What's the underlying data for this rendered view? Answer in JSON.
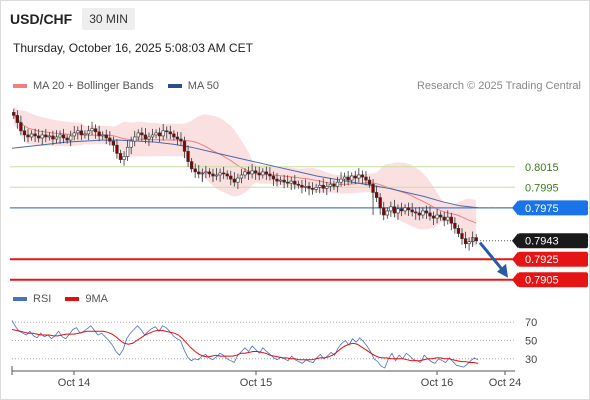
{
  "header": {
    "symbol": "USD/CHF",
    "timeframe": "30 MIN"
  },
  "datetime": "Thursday, October 16, 2025 5:08:03 AM CET",
  "legend_main": [
    {
      "label": "MA 20 + Bollinger Bands",
      "color": "#f08080"
    },
    {
      "label": "MA 50",
      "color": "#2c4f8c"
    }
  ],
  "credit": "Research © 2025 Trading Central",
  "legend_rsi": [
    {
      "label": "RSI",
      "color": "#4472c4"
    },
    {
      "label": "9MA",
      "color": "#e01010"
    }
  ],
  "colors": {
    "up_candle": "#ffffff",
    "down_candle": "#8b0000",
    "support": "#e51515",
    "resistance_green": "#9acd32",
    "ma50_line": "#4a7fd0",
    "bollinger_fill": "#fadadd",
    "current_price_bg": "#1a1a1a",
    "ma50_tag_bg": "#1a73e8",
    "forecast_arrow": "#2a5aa8"
  },
  "chart_data": [
    {
      "type": "candlestick",
      "x_ticks": [
        "Oct 14",
        "Oct 15",
        "Oct 16",
        "Oct 24"
      ],
      "ylim": [
        0.7895,
        0.808
      ],
      "levels": [
        {
          "label": "0.8015",
          "value": 0.8015,
          "kind": "resistance"
        },
        {
          "label": "0.7995",
          "value": 0.7995,
          "kind": "resistance"
        },
        {
          "label": "0.7975",
          "value": 0.7975,
          "kind": "ma50"
        },
        {
          "label": "0.7943",
          "value": 0.7943,
          "kind": "current"
        },
        {
          "label": "0.7925",
          "value": 0.7925,
          "kind": "support"
        },
        {
          "label": "0.7905",
          "value": 0.7905,
          "kind": "support"
        }
      ],
      "close_prices": [
        0.8065,
        0.8058,
        0.805,
        0.8046,
        0.8044,
        0.8047,
        0.8045,
        0.8043,
        0.8046,
        0.8044,
        0.8045,
        0.8042,
        0.8044,
        0.8046,
        0.8043,
        0.8041,
        0.8045,
        0.8048,
        0.805,
        0.8046,
        0.8047,
        0.805,
        0.8052,
        0.8049,
        0.8045,
        0.8046,
        0.8043,
        0.804,
        0.8036,
        0.8028,
        0.8022,
        0.8025,
        0.8034,
        0.804,
        0.8044,
        0.8048,
        0.8046,
        0.8042,
        0.8044,
        0.8046,
        0.8048,
        0.8045,
        0.805,
        0.8049,
        0.8047,
        0.8044,
        0.8042,
        0.804,
        0.803,
        0.802,
        0.8013,
        0.801,
        0.8008,
        0.8009,
        0.801,
        0.8008,
        0.8006,
        0.8007,
        0.8009,
        0.8008,
        0.8006,
        0.8003,
        0.8,
        0.8004,
        0.8007,
        0.801,
        0.8008,
        0.8011,
        0.8009,
        0.8007,
        0.801,
        0.8008,
        0.8006,
        0.8003,
        0.8001,
        0.8002,
        0.8,
        0.7999,
        0.8001,
        0.7998,
        0.7997,
        0.7995,
        0.7996,
        0.7994,
        0.7993,
        0.7995,
        0.7997,
        0.7994,
        0.7996,
        0.7998,
        0.7996,
        0.8,
        0.8003,
        0.8005,
        0.8002,
        0.8006,
        0.8004,
        0.8007,
        0.8005,
        0.8002,
        0.7998,
        0.799,
        0.7985,
        0.7975,
        0.7968,
        0.7972,
        0.7976,
        0.797,
        0.7974,
        0.7972,
        0.7975,
        0.7973,
        0.7971,
        0.797,
        0.7968,
        0.7972,
        0.797,
        0.7967,
        0.7965,
        0.7968,
        0.7966,
        0.7963,
        0.7966,
        0.796,
        0.7955,
        0.795,
        0.7945,
        0.794,
        0.7942,
        0.7946,
        0.7943
      ],
      "ma50": [
        0.8033,
        0.8035,
        0.8037,
        0.8039,
        0.804,
        0.8041,
        0.8041,
        0.804,
        0.8039,
        0.8037,
        0.8034,
        0.803,
        0.8026,
        0.8022,
        0.8018,
        0.8014,
        0.801,
        0.8006,
        0.8003,
        0.8,
        0.7997,
        0.7994,
        0.799,
        0.7986,
        0.7981,
        0.7977,
        0.7975
      ]
    },
    {
      "type": "line",
      "title": "RSI",
      "y_ticks": [
        70,
        50,
        30
      ],
      "ylim": [
        20,
        80
      ],
      "series": [
        {
          "name": "RSI",
          "values": [
            72,
            65,
            60,
            58,
            56,
            60,
            55,
            53,
            58,
            54,
            56,
            52,
            55,
            60,
            54,
            52,
            57,
            62,
            64,
            58,
            60,
            63,
            66,
            61,
            56,
            58,
            54,
            50,
            45,
            38,
            34,
            40,
            52,
            58,
            62,
            66,
            62,
            56,
            60,
            63,
            65,
            60,
            66,
            64,
            60,
            55,
            52,
            50,
            40,
            32,
            28,
            30,
            29,
            33,
            35,
            31,
            29,
            32,
            36,
            34,
            30,
            28,
            26,
            34,
            38,
            42,
            38,
            44,
            40,
            36,
            42,
            38,
            35,
            31,
            29,
            32,
            30,
            28,
            33,
            29,
            27,
            25,
            29,
            27,
            26,
            31,
            35,
            30,
            33,
            37,
            34,
            42,
            47,
            50,
            45,
            52,
            48,
            53,
            49,
            44,
            38,
            30,
            27,
            22,
            20,
            30,
            36,
            28,
            34,
            30,
            36,
            33,
            29,
            28,
            26,
            34,
            30,
            27,
            25,
            30,
            28,
            26,
            31,
            27,
            23,
            22,
            21,
            24,
            28,
            31,
            29
          ]
        },
        {
          "name": "9MA",
          "values": [
            62,
            61,
            60,
            59,
            58,
            58,
            57,
            56,
            56,
            56,
            55,
            55,
            56,
            57,
            57,
            57,
            58,
            59,
            60,
            60,
            60,
            60,
            60,
            59,
            57,
            54,
            50,
            47,
            46,
            47,
            50,
            53,
            56,
            58,
            60,
            61,
            61,
            60,
            59,
            58,
            56,
            52,
            47,
            42,
            38,
            35,
            33,
            32,
            33,
            34,
            33,
            33,
            33,
            33,
            34,
            36,
            36,
            37,
            38,
            38,
            37,
            36,
            34,
            33,
            32,
            31,
            31,
            30,
            30,
            29,
            29,
            29,
            29,
            30,
            31,
            31,
            32,
            34,
            37,
            41,
            44,
            46,
            47,
            46,
            43,
            40,
            37,
            34,
            32,
            31,
            31,
            30,
            30,
            30,
            30,
            29,
            28,
            28,
            28,
            29,
            30,
            30,
            31,
            31,
            30,
            30,
            29,
            28,
            27,
            27,
            26,
            26,
            25
          ]
        }
      ]
    }
  ]
}
